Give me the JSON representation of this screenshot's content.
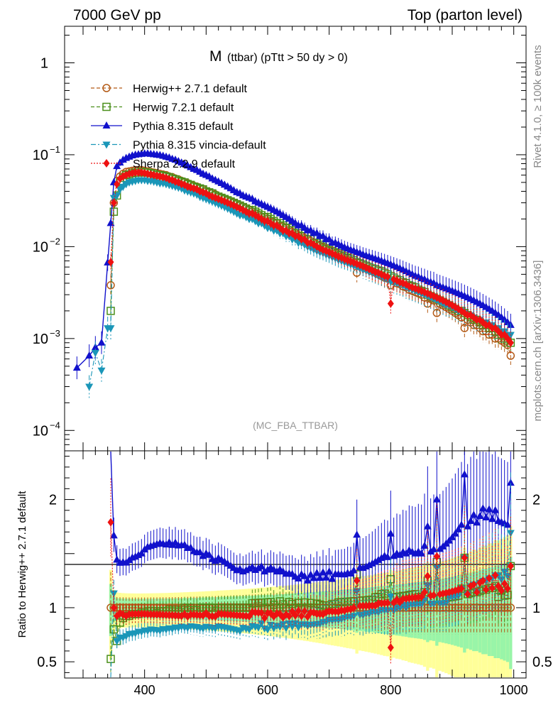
{
  "header": {
    "left": "7000 GeV pp",
    "right": "Top (parton level)"
  },
  "side_labels": {
    "top": "Rivet 4.1.0, ≥ 100k events",
    "bottom": "mcplots.cern.ch [arXiv:1306.3436]"
  },
  "chart_data": {
    "type": "line",
    "title_main": "M",
    "title_sub": "(ttbar) (pTtt > 50 dy > 0)",
    "analysis_tag": "(MC_FBA_TTBAR)",
    "xlabel": "",
    "ylabel": "",
    "xlim": [
      270,
      1020
    ],
    "ylim": [
      6e-05,
      2.5
    ],
    "yscale": "log",
    "ratio_ylabel": "Ratio to Herwig++ 2.7.1 default",
    "ratio_ylim": [
      0.35,
      2.45
    ],
    "x_ticks": [
      {
        "value": 400,
        "label": "400"
      },
      {
        "value": 600,
        "label": "600"
      },
      {
        "value": 800,
        "label": "800"
      },
      {
        "value": 1000,
        "label": "1000"
      }
    ],
    "y_ticks": [
      {
        "value": 1,
        "base": "1",
        "exp": ""
      },
      {
        "value": 0.1,
        "base": "10",
        "exp": "−1"
      },
      {
        "value": 0.01,
        "base": "10",
        "exp": "−2"
      },
      {
        "value": 0.001,
        "base": "10",
        "exp": "−3"
      },
      {
        "value": 0.0001,
        "base": "10",
        "exp": "−4"
      }
    ],
    "ratio_ticks": [
      {
        "value": 2,
        "label": "2"
      },
      {
        "value": 1,
        "label": "1"
      },
      {
        "value": 0.5,
        "label": "0.5"
      }
    ],
    "x": [
      290,
      310,
      320,
      330,
      340,
      345,
      350,
      355,
      360,
      365,
      370,
      375,
      380,
      385,
      390,
      395,
      400,
      405,
      410,
      415,
      420,
      425,
      430,
      435,
      440,
      445,
      450,
      455,
      460,
      465,
      470,
      475,
      480,
      485,
      490,
      495,
      500,
      505,
      510,
      515,
      520,
      525,
      530,
      535,
      540,
      545,
      550,
      555,
      560,
      565,
      570,
      575,
      580,
      585,
      590,
      595,
      600,
      605,
      610,
      615,
      620,
      625,
      630,
      635,
      640,
      645,
      650,
      655,
      660,
      665,
      670,
      675,
      680,
      685,
      690,
      695,
      700,
      705,
      710,
      715,
      720,
      725,
      730,
      735,
      740,
      745,
      750,
      755,
      760,
      765,
      770,
      775,
      780,
      785,
      790,
      795,
      800,
      805,
      810,
      815,
      820,
      825,
      830,
      835,
      840,
      845,
      850,
      855,
      860,
      865,
      870,
      875,
      880,
      885,
      890,
      895,
      900,
      905,
      910,
      915,
      920,
      925,
      930,
      935,
      940,
      945,
      950,
      955,
      960,
      965,
      970,
      975,
      980,
      985,
      990,
      995
    ],
    "series": [
      {
        "name": "Herwig++ 2.7.1 default",
        "color": "#b35a16",
        "marker": "circle-open",
        "line": "dashed",
        "values": [
          null,
          null,
          null,
          null,
          null,
          0.0038,
          0.03,
          0.052,
          0.058,
          0.062,
          0.065,
          0.066,
          0.067,
          0.068,
          0.068,
          0.068,
          0.067,
          0.066,
          0.065,
          0.064,
          0.063,
          0.062,
          0.061,
          0.06,
          0.058,
          0.057,
          0.055,
          0.054,
          0.052,
          0.05,
          0.049,
          0.047,
          0.046,
          0.045,
          0.043,
          0.042,
          0.04,
          0.039,
          0.038,
          0.037,
          0.035,
          0.034,
          0.033,
          0.032,
          0.031,
          0.03,
          0.029,
          0.028,
          0.027,
          0.026,
          0.025,
          0.024,
          0.023,
          0.022,
          0.021,
          0.021,
          0.02,
          0.019,
          0.0185,
          0.018,
          0.017,
          0.0165,
          0.016,
          0.0152,
          0.0145,
          0.014,
          0.0134,
          0.013,
          0.0124,
          0.012,
          0.0115,
          0.011,
          0.0106,
          0.0102,
          0.0098,
          0.0094,
          0.009,
          0.0087,
          0.0084,
          0.0081,
          0.0078,
          0.0075,
          0.0072,
          0.007,
          0.0067,
          0.0052,
          0.0062,
          0.006,
          0.0058,
          0.0056,
          0.0054,
          0.0052,
          0.005,
          0.0048,
          0.0046,
          0.0045,
          0.0038,
          0.0042,
          0.004,
          0.0039,
          0.0037,
          0.0036,
          0.0034,
          0.0033,
          0.0032,
          0.0031,
          0.003,
          0.0028,
          0.0024,
          0.0027,
          0.0026,
          0.0019,
          0.0024,
          0.0023,
          0.0022,
          0.0021,
          0.002,
          0.0019,
          0.0018,
          0.0017,
          0.0013,
          0.0016,
          0.0015,
          0.0014,
          0.0014,
          0.0013,
          0.0012,
          0.0012,
          0.0011,
          0.0011,
          0.001,
          0.001,
          0.00095,
          0.0009,
          0.00085,
          0.00065
        ]
      },
      {
        "name": "Herwig 7.2.1 default",
        "color": "#4a8f1a",
        "marker": "square-open",
        "line": "dashed",
        "values": [
          null,
          null,
          null,
          null,
          null,
          0.002,
          0.024,
          0.036,
          0.05,
          0.056,
          0.06,
          0.061,
          0.063,
          0.064,
          0.064,
          0.065,
          0.064,
          0.064,
          0.063,
          0.062,
          0.06,
          0.06,
          0.059,
          0.058,
          0.057,
          0.055,
          0.054,
          0.052,
          0.051,
          0.05,
          0.048,
          0.047,
          0.045,
          0.044,
          0.043,
          0.042,
          0.04,
          0.039,
          0.038,
          0.036,
          0.035,
          0.034,
          0.033,
          0.032,
          0.031,
          0.03,
          0.029,
          0.028,
          0.027,
          0.026,
          0.025,
          0.025,
          0.024,
          0.023,
          0.022,
          0.021,
          0.021,
          0.02,
          0.019,
          0.018,
          0.018,
          0.017,
          0.016,
          0.016,
          0.015,
          0.014,
          0.014,
          0.013,
          0.013,
          0.012,
          0.012,
          0.011,
          0.011,
          0.0105,
          0.01,
          0.0096,
          0.0092,
          0.009,
          0.0087,
          0.0085,
          0.0082,
          0.0079,
          0.0076,
          0.0074,
          0.0071,
          0.0068,
          0.0066,
          0.0064,
          0.0062,
          0.006,
          0.0058,
          0.0057,
          0.0055,
          0.0054,
          0.0052,
          0.005,
          0.0048,
          0.0046,
          0.0044,
          0.0043,
          0.0041,
          0.004,
          0.0038,
          0.0037,
          0.0036,
          0.0034,
          0.0033,
          0.0032,
          0.003,
          0.0029,
          0.0028,
          0.0027,
          0.0026,
          0.0025,
          0.0024,
          0.0023,
          0.0022,
          0.0021,
          0.002,
          0.002,
          0.0019,
          0.0018,
          0.0017,
          0.0016,
          0.0016,
          0.0015,
          0.0014,
          0.0014,
          0.0013,
          0.0013,
          0.0012,
          0.0011,
          0.0011,
          0.001,
          0.00095,
          0.0009
        ]
      },
      {
        "name": "Pythia 8.315 default",
        "color": "#1111cc",
        "marker": "triangle-up",
        "line": "solid",
        "values": [
          0.00048,
          0.00065,
          0.0008,
          0.0009,
          0.0067,
          0.018,
          0.05,
          0.075,
          0.082,
          0.088,
          0.092,
          0.095,
          0.098,
          0.1,
          0.101,
          0.102,
          0.103,
          0.103,
          0.102,
          0.101,
          0.1,
          0.099,
          0.097,
          0.095,
          0.093,
          0.09,
          0.088,
          0.085,
          0.082,
          0.079,
          0.076,
          0.073,
          0.07,
          0.068,
          0.065,
          0.062,
          0.06,
          0.058,
          0.055,
          0.053,
          0.051,
          0.049,
          0.047,
          0.045,
          0.043,
          0.041,
          0.039,
          0.038,
          0.036,
          0.035,
          0.034,
          0.033,
          0.031,
          0.03,
          0.029,
          0.028,
          0.027,
          0.026,
          0.025,
          0.024,
          0.023,
          0.022,
          0.021,
          0.02,
          0.019,
          0.018,
          0.017,
          0.017,
          0.016,
          0.015,
          0.015,
          0.014,
          0.014,
          0.013,
          0.013,
          0.012,
          0.012,
          0.011,
          0.011,
          0.0106,
          0.0102,
          0.0098,
          0.0095,
          0.0092,
          0.009,
          0.0087,
          0.0085,
          0.0082,
          0.008,
          0.0078,
          0.0076,
          0.0074,
          0.0072,
          0.007,
          0.0068,
          0.0066,
          0.0064,
          0.0062,
          0.006,
          0.0058,
          0.0056,
          0.0054,
          0.0052,
          0.005,
          0.0048,
          0.0047,
          0.0045,
          0.0044,
          0.0042,
          0.0041,
          0.004,
          0.0038,
          0.0037,
          0.0036,
          0.0035,
          0.0034,
          0.0033,
          0.0032,
          0.0031,
          0.003,
          0.0029,
          0.0028,
          0.0027,
          0.0026,
          0.0025,
          0.0024,
          0.0023,
          0.0022,
          0.0021,
          0.002,
          0.0019,
          0.0018,
          0.0017,
          0.0016,
          0.0015,
          0.0014
        ]
      },
      {
        "name": "Pythia 8.315 vincia-default",
        "color": "#1a96b8",
        "marker": "triangle-down",
        "line": "dashdot",
        "values": [
          null,
          0.0003,
          0.0007,
          0.00045,
          0.0013,
          0.0013,
          0.034,
          0.036,
          0.042,
          0.045,
          0.048,
          0.05,
          0.051,
          0.052,
          0.053,
          0.053,
          0.053,
          0.052,
          0.052,
          0.051,
          0.05,
          0.049,
          0.049,
          0.048,
          0.047,
          0.046,
          0.045,
          0.044,
          0.043,
          0.041,
          0.04,
          0.039,
          0.038,
          0.037,
          0.035,
          0.034,
          0.033,
          0.032,
          0.031,
          0.03,
          0.029,
          0.028,
          0.027,
          0.026,
          0.025,
          0.024,
          0.023,
          0.022,
          0.022,
          0.021,
          0.02,
          0.02,
          0.019,
          0.018,
          0.018,
          0.017,
          0.016,
          0.016,
          0.015,
          0.015,
          0.014,
          0.014,
          0.013,
          0.013,
          0.012,
          0.012,
          0.011,
          0.011,
          0.0105,
          0.01,
          0.0097,
          0.0093,
          0.009,
          0.0087,
          0.0085,
          0.0082,
          0.008,
          0.0077,
          0.0075,
          0.0072,
          0.007,
          0.0068,
          0.0066,
          0.0064,
          0.0062,
          0.006,
          0.0058,
          0.0056,
          0.0055,
          0.0053,
          0.0052,
          0.005,
          0.0048,
          0.0047,
          0.0045,
          0.0044,
          0.0042,
          0.0041,
          0.004,
          0.0039,
          0.0038,
          0.0036,
          0.0035,
          0.0034,
          0.0033,
          0.0032,
          0.0031,
          0.003,
          0.0029,
          0.0028,
          0.0027,
          0.0026,
          0.0025,
          0.0024,
          0.0023,
          0.0023,
          0.0022,
          0.0021,
          0.002,
          0.002,
          0.0019,
          0.0018,
          0.0018,
          0.0017,
          0.0016,
          0.0016,
          0.0015,
          0.0015,
          0.0014,
          0.0014,
          0.0013,
          0.0013,
          0.0012,
          0.0012,
          0.0011,
          0.0011
        ]
      },
      {
        "name": "Sherpa 2.2.9 default",
        "color": "#ee1111",
        "marker": "diamond",
        "line": "dotted",
        "values": [
          null,
          null,
          null,
          null,
          null,
          0.0068,
          0.03,
          0.048,
          0.055,
          0.058,
          0.06,
          0.062,
          0.063,
          0.064,
          0.064,
          0.064,
          0.063,
          0.062,
          0.061,
          0.06,
          0.059,
          0.058,
          0.057,
          0.056,
          0.054,
          0.053,
          0.051,
          0.05,
          0.048,
          0.047,
          0.045,
          0.044,
          0.043,
          0.042,
          0.04,
          0.039,
          0.038,
          0.036,
          0.035,
          0.034,
          0.033,
          0.032,
          0.031,
          0.03,
          0.029,
          0.028,
          0.027,
          0.026,
          0.025,
          0.024,
          0.023,
          0.023,
          0.022,
          0.021,
          0.02,
          0.019,
          0.019,
          0.018,
          0.017,
          0.017,
          0.016,
          0.015,
          0.015,
          0.014,
          0.014,
          0.013,
          0.013,
          0.012,
          0.012,
          0.011,
          0.011,
          0.0105,
          0.01,
          0.0096,
          0.0092,
          0.009,
          0.0087,
          0.0084,
          0.0081,
          0.0078,
          0.0076,
          0.0073,
          0.0071,
          0.0069,
          0.0067,
          0.0065,
          0.0063,
          0.0061,
          0.0059,
          0.0057,
          0.0055,
          0.0053,
          0.0052,
          0.005,
          0.0048,
          0.0047,
          0.0024,
          0.0044,
          0.0043,
          0.0041,
          0.004,
          0.0039,
          0.0037,
          0.0036,
          0.0035,
          0.0034,
          0.0033,
          0.0032,
          0.0031,
          0.003,
          0.0029,
          0.0028,
          0.0027,
          0.0026,
          0.0025,
          0.0024,
          0.0023,
          0.0022,
          0.0021,
          0.002,
          0.0019,
          0.0018,
          0.0018,
          0.0017,
          0.0016,
          0.0016,
          0.0015,
          0.0014,
          0.0014,
          0.0013,
          0.0013,
          0.0012,
          0.0011,
          0.0011,
          0.001,
          0.0009
        ]
      }
    ]
  }
}
